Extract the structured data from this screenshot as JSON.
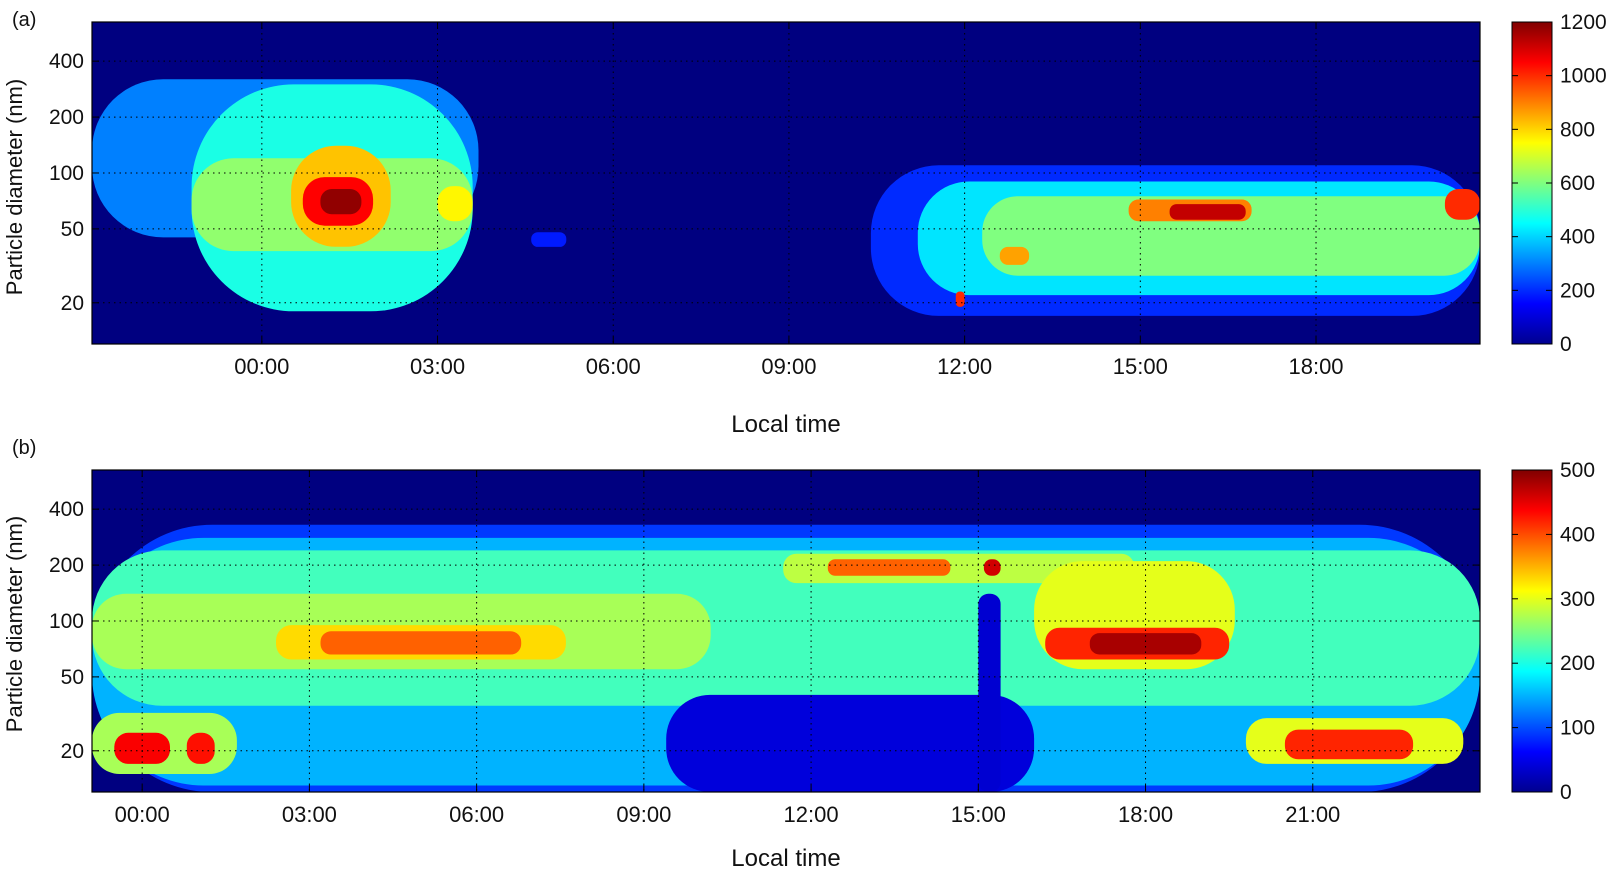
{
  "chart_data": [
    {
      "panel_label": "(a)",
      "type": "heatmap",
      "xlabel": "Local time",
      "ylabel": "Particle diameter (nm)",
      "x_ticks": [
        "00:00",
        "03:00",
        "06:00",
        "09:00",
        "12:00",
        "15:00",
        "18:00"
      ],
      "x_range_hours": [
        -2.9,
        20.8
      ],
      "y_scale": "log",
      "y_ticks": [
        20,
        50,
        100,
        200,
        400
      ],
      "y_range": [
        12,
        650
      ],
      "grid": "dotted",
      "colorbar": {
        "ticks": [
          0,
          200,
          400,
          600,
          800,
          1000,
          1200
        ],
        "range": [
          0,
          1200
        ]
      },
      "background_value": 0,
      "features": [
        {
          "t0": -2.9,
          "t1": 3.7,
          "d0": 45,
          "d1": 320,
          "value": 300
        },
        {
          "t0": -1.2,
          "t1": 3.6,
          "d0": 18,
          "d1": 300,
          "value": 480
        },
        {
          "t0": -1.2,
          "t1": 3.6,
          "d0": 38,
          "d1": 120,
          "value": 620
        },
        {
          "t0": 0.5,
          "t1": 2.2,
          "d0": 40,
          "d1": 140,
          "value": 820
        },
        {
          "t0": 0.7,
          "t1": 1.9,
          "d0": 52,
          "d1": 95,
          "value": 1050
        },
        {
          "t0": 1.0,
          "t1": 1.7,
          "d0": 60,
          "d1": 82,
          "value": 1180
        },
        {
          "t0": 3.0,
          "t1": 3.6,
          "d0": 55,
          "d1": 85,
          "value": 760
        },
        {
          "t0": 4.6,
          "t1": 5.2,
          "d0": 40,
          "d1": 48,
          "value": 180
        },
        {
          "t0": 10.4,
          "t1": 20.8,
          "d0": 17,
          "d1": 110,
          "value": 200
        },
        {
          "t0": 11.2,
          "t1": 20.8,
          "d0": 22,
          "d1": 90,
          "value": 420
        },
        {
          "t0": 12.3,
          "t1": 20.8,
          "d0": 28,
          "d1": 75,
          "value": 600
        },
        {
          "t0": 12.6,
          "t1": 13.1,
          "d0": 32,
          "d1": 40,
          "value": 860
        },
        {
          "t0": 14.8,
          "t1": 16.9,
          "d0": 55,
          "d1": 72,
          "value": 900
        },
        {
          "t0": 15.5,
          "t1": 16.8,
          "d0": 56,
          "d1": 68,
          "value": 1120
        },
        {
          "t0": 20.2,
          "t1": 20.8,
          "d0": 56,
          "d1": 82,
          "value": 1000
        },
        {
          "t0": 11.85,
          "t1": 12.0,
          "d0": 19,
          "d1": 23,
          "value": 1000
        }
      ]
    },
    {
      "panel_label": "(b)",
      "type": "heatmap",
      "xlabel": "Local time",
      "ylabel": "Particle diameter (nm)",
      "x_ticks": [
        "00:00",
        "03:00",
        "06:00",
        "09:00",
        "12:00",
        "15:00",
        "18:00",
        "21:00"
      ],
      "x_range_hours": [
        -0.9,
        24.0
      ],
      "y_scale": "log",
      "y_ticks": [
        20,
        50,
        100,
        200,
        400
      ],
      "y_range": [
        12,
        650
      ],
      "grid": "dotted",
      "colorbar": {
        "ticks": [
          0,
          100,
          200,
          300,
          400,
          500
        ],
        "range": [
          0,
          500
        ]
      },
      "background_value": 0,
      "features": [
        {
          "t0": -0.9,
          "t1": 24.0,
          "d0": 12,
          "d1": 330,
          "value": 90
        },
        {
          "t0": -0.9,
          "t1": 24.0,
          "d0": 13,
          "d1": 280,
          "value": 150
        },
        {
          "t0": -0.9,
          "t1": 24.0,
          "d0": 35,
          "d1": 240,
          "value": 220
        },
        {
          "t0": -0.9,
          "t1": 10.2,
          "d0": 55,
          "d1": 140,
          "value": 270
        },
        {
          "t0": 2.4,
          "t1": 7.6,
          "d0": 62,
          "d1": 95,
          "value": 330
        },
        {
          "t0": 3.2,
          "t1": 6.8,
          "d0": 66,
          "d1": 88,
          "value": 390
        },
        {
          "t0": 11.5,
          "t1": 17.8,
          "d0": 160,
          "d1": 230,
          "value": 280
        },
        {
          "t0": 12.3,
          "t1": 14.5,
          "d0": 175,
          "d1": 215,
          "value": 390
        },
        {
          "t0": 16.0,
          "t1": 19.6,
          "d0": 55,
          "d1": 210,
          "value": 300
        },
        {
          "t0": 16.2,
          "t1": 19.5,
          "d0": 62,
          "d1": 92,
          "value": 420
        },
        {
          "t0": 17.0,
          "t1": 19.0,
          "d0": 66,
          "d1": 86,
          "value": 480
        },
        {
          "t0": -0.9,
          "t1": 1.7,
          "d0": 15,
          "d1": 32,
          "value": 270
        },
        {
          "t0": -0.5,
          "t1": 0.5,
          "d0": 17,
          "d1": 25,
          "value": 440
        },
        {
          "t0": 0.8,
          "t1": 1.3,
          "d0": 17,
          "d1": 25,
          "value": 430
        },
        {
          "t0": 19.8,
          "t1": 23.7,
          "d0": 17,
          "d1": 30,
          "value": 300
        },
        {
          "t0": 20.5,
          "t1": 22.8,
          "d0": 18,
          "d1": 26,
          "value": 420
        },
        {
          "t0": 9.4,
          "t1": 16.0,
          "d0": 12,
          "d1": 40,
          "value": 45
        },
        {
          "t0": 15.0,
          "t1": 15.4,
          "d0": 12,
          "d1": 140,
          "value": 40
        },
        {
          "t0": 15.1,
          "t1": 15.4,
          "d0": 175,
          "d1": 215,
          "value": 460
        }
      ]
    }
  ]
}
